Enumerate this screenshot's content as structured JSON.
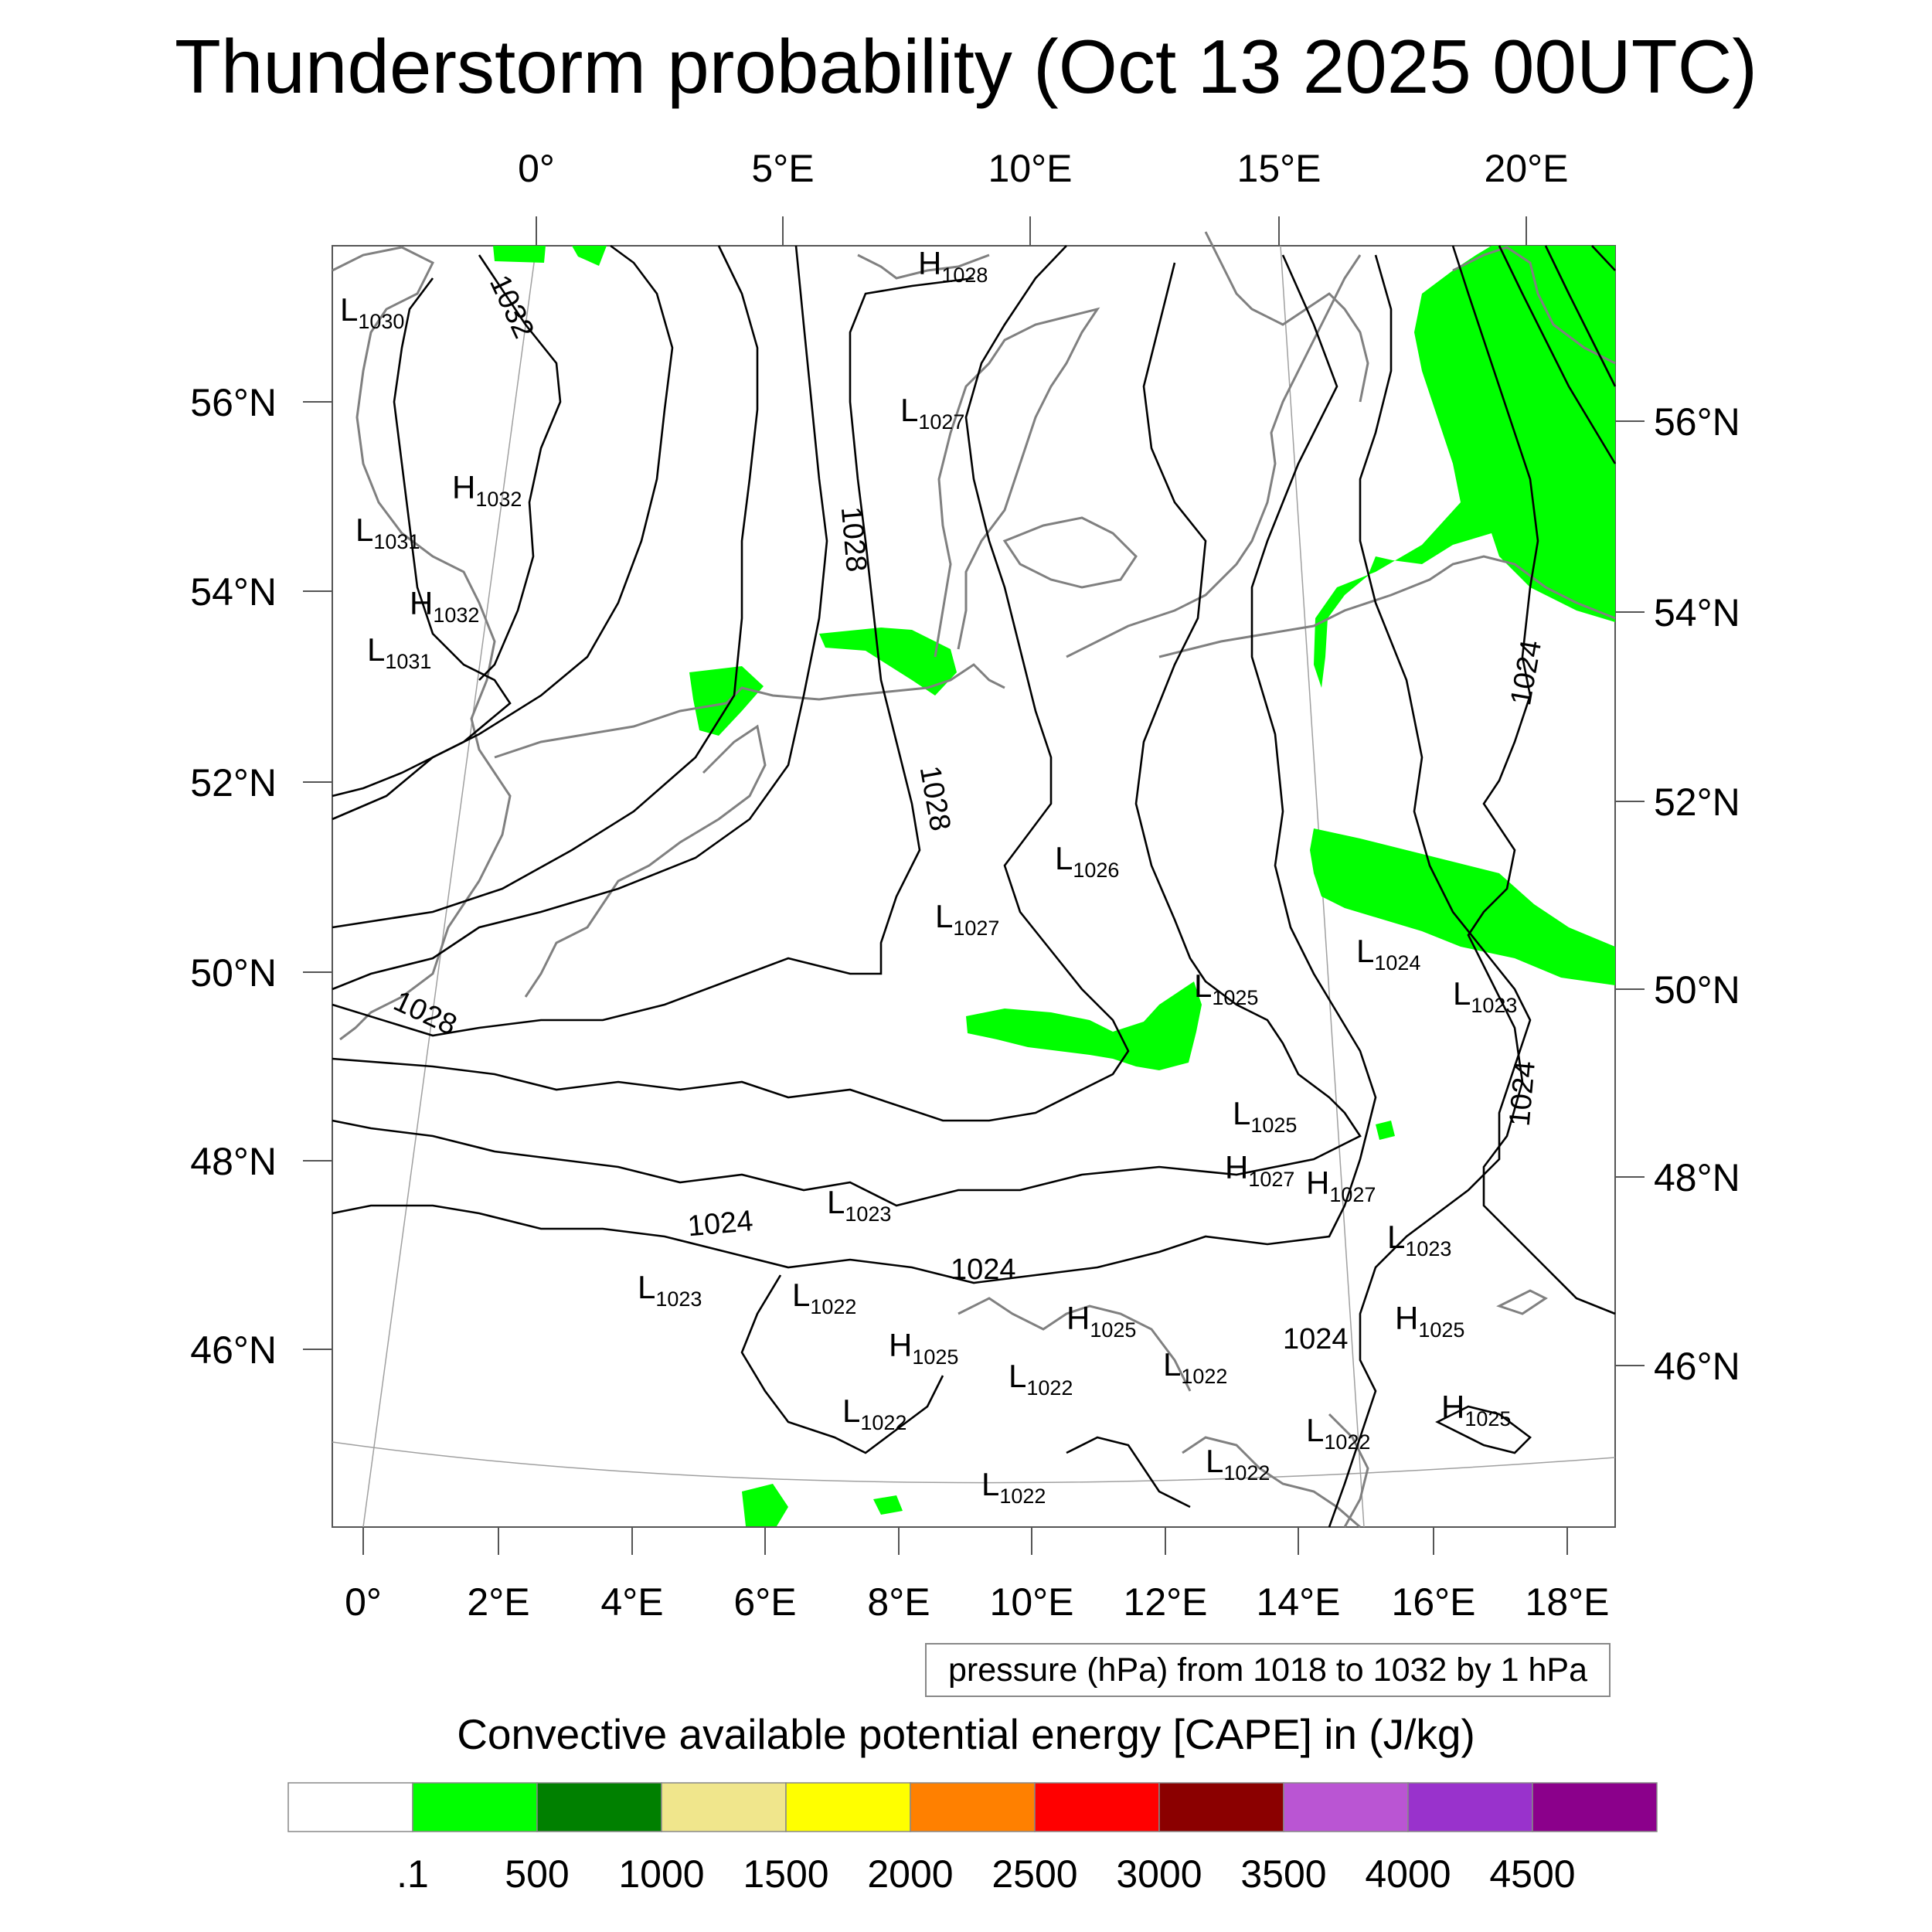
{
  "title": "Thunderstorm probability (Oct 13 2025 00UTC)",
  "map": {
    "top_lon_labels": [
      "0°",
      "5°E",
      "10°E",
      "15°E",
      "20°E"
    ],
    "bottom_lon_labels": [
      "0°",
      "2°E",
      "4°E",
      "6°E",
      "8°E",
      "10°E",
      "12°E",
      "14°E",
      "16°E",
      "18°E"
    ],
    "left_lat_labels": [
      "56°N",
      "54°N",
      "52°N",
      "50°N",
      "48°N",
      "46°N"
    ],
    "right_lat_labels": [
      "56°N",
      "54°N",
      "52°N",
      "50°N",
      "48°N",
      "46°N"
    ],
    "contour_labels": [
      "1032",
      "1028",
      "1028",
      "1028",
      "1024",
      "1024",
      "1024",
      "1024",
      "1024"
    ],
    "pressure_centers": [
      {
        "type": "L",
        "value": "1030"
      },
      {
        "type": "H",
        "value": "1028"
      },
      {
        "type": "L",
        "value": "1027"
      },
      {
        "type": "H",
        "value": "1032"
      },
      {
        "type": "L",
        "value": "1031"
      },
      {
        "type": "H",
        "value": "1032"
      },
      {
        "type": "L",
        "value": "1031"
      },
      {
        "type": "L",
        "value": "1026"
      },
      {
        "type": "L",
        "value": "1027"
      },
      {
        "type": "L",
        "value": "1024"
      },
      {
        "type": "L",
        "value": "1025"
      },
      {
        "type": "L",
        "value": "1023"
      },
      {
        "type": "L",
        "value": "1025"
      },
      {
        "type": "H",
        "value": "1027"
      },
      {
        "type": "H",
        "value": "1027"
      },
      {
        "type": "L",
        "value": "1023"
      },
      {
        "type": "L",
        "value": "1023"
      },
      {
        "type": "L",
        "value": "1023"
      },
      {
        "type": "L",
        "value": "1022"
      },
      {
        "type": "H",
        "value": "1025"
      },
      {
        "type": "H",
        "value": "1025"
      },
      {
        "type": "H",
        "value": "1025"
      },
      {
        "type": "L",
        "value": "1022"
      },
      {
        "type": "L",
        "value": "1022"
      },
      {
        "type": "L",
        "value": "1022"
      },
      {
        "type": "H",
        "value": "1025"
      },
      {
        "type": "L",
        "value": "1022"
      },
      {
        "type": "L",
        "value": "1022"
      },
      {
        "type": "L",
        "value": "1022"
      }
    ],
    "cape_regions": [
      "north-sea-west",
      "north-sea-east",
      "baltic-east",
      "poland-south",
      "germany-south",
      "alps-south"
    ]
  },
  "contour_legend": "pressure (hPa) from 1018 to 1032 by 1 hPa",
  "colorbar": {
    "title": "Convective available potential energy [CAPE] in (J/kg)",
    "colors": [
      "#ffffff",
      "#00ff00",
      "#008000",
      "#f0e68c",
      "#ffff00",
      "#ff8000",
      "#ff0000",
      "#8b0000",
      "#ba55d3",
      "#9932cc",
      "#8b008b"
    ],
    "labels": [
      ".1",
      "500",
      "1000",
      "1500",
      "2000",
      "2500",
      "3000",
      "3500",
      "4000",
      "4500"
    ]
  },
  "colors": {
    "cape_green": "#00ff00",
    "contour": "#000000",
    "coast": "#808080",
    "grid": "#a0a0a0"
  }
}
